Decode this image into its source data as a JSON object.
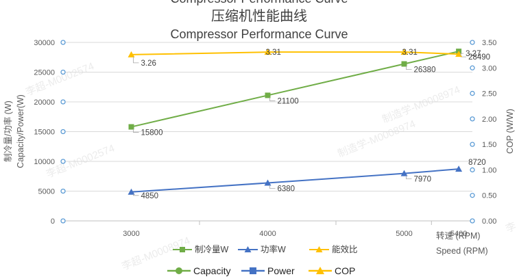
{
  "titles": {
    "cn": "压缩机性能曲线",
    "en": "Compressor Performance Curve",
    "top_partial": "Compressor Performance Curve"
  },
  "axes": {
    "left_title_cn": "制冷量/功率 (W)",
    "left_title_en": "Capacity/Power(W)",
    "right_title": "COP (W/W)",
    "x_title_cn": "转速 (RPM)",
    "x_title_en": "Speed (RPM)"
  },
  "legend_row1": [
    "制冷量W",
    "功率W",
    "能效比"
  ],
  "legend_row2": [
    "Capacity",
    "Power",
    "COP"
  ],
  "watermarks": [
    "李超-M0002574",
    "李超-M0002574",
    "制造学-M0008974",
    "制造学-M0008974",
    "李超-M0008974",
    "李"
  ],
  "colors": {
    "capacity": "#70ad47",
    "power": "#4472c4",
    "cop": "#ffc000",
    "grid": "#d9d9d9",
    "axis_marker": "#5b9bd5"
  },
  "chart_data": {
    "type": "line",
    "x": [
      3000,
      4000,
      5000,
      5400
    ],
    "x_tick_labels": [
      "3000",
      "4000",
      "5000",
      "5400"
    ],
    "series": [
      {
        "name": "制冷量W",
        "axis": "left",
        "values": [
          15800,
          21100,
          26380,
          28490
        ],
        "labels": [
          "15800",
          "21100",
          "26380",
          "28490"
        ]
      },
      {
        "name": "功率W",
        "axis": "left",
        "values": [
          4850,
          6380,
          7970,
          8720
        ],
        "labels": [
          "4850",
          "6380",
          "7970",
          "8720"
        ]
      },
      {
        "name": "能效比",
        "axis": "right",
        "values": [
          3.26,
          3.31,
          3.31,
          3.27
        ],
        "labels": [
          "3.26",
          "3.31",
          "3.31",
          "3.27"
        ]
      }
    ],
    "y_left": {
      "min": 0,
      "max": 30000,
      "step": 5000,
      "tick_labels": [
        "0",
        "5000",
        "10000",
        "15000",
        "20000",
        "25000",
        "30000"
      ]
    },
    "y_right": {
      "min": 0,
      "max": 3.5,
      "step": 0.5,
      "tick_labels": [
        "0.00",
        "0.50",
        "1.00",
        "1.50",
        "2.00",
        "2.50",
        "3.00",
        "3.50"
      ]
    },
    "grid": "horizontal",
    "legend_position": "bottom"
  }
}
